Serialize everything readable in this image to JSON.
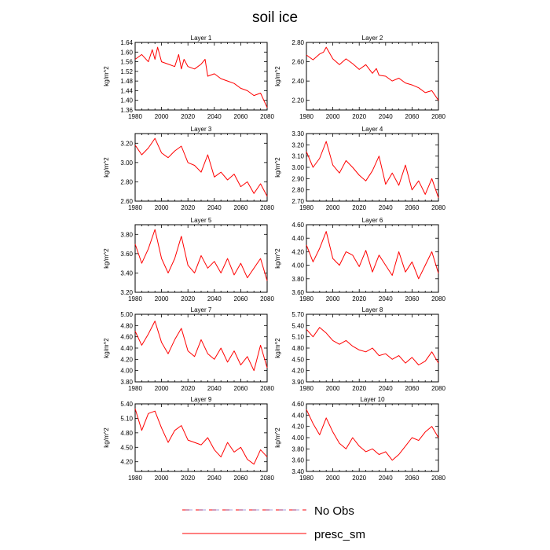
{
  "chart_data": {
    "type": "line",
    "title": "soil ice",
    "legend": {
      "position": "bottom-center",
      "entries": [
        {
          "name": "No Obs",
          "style": "dashed",
          "color": "#6b5cc4",
          "alt_color": "#ff0000"
        },
        {
          "name": "presc_sm",
          "style": "solid",
          "color": "#ff0000"
        }
      ]
    },
    "xlim": [
      1980,
      2080
    ],
    "x_ticks": [
      1980,
      2000,
      2020,
      2040,
      2060,
      2080
    ],
    "x_tick_labels": [
      "1980",
      "2000",
      "2020",
      "2040",
      "2060",
      "2080"
    ],
    "ylabel": "kg/m^2",
    "series_color": "#ff0000",
    "panels": [
      {
        "title": "Layer 1",
        "ylim": [
          1.36,
          1.64
        ],
        "y_ticks": [
          1.36,
          1.4,
          1.44,
          1.48,
          1.52,
          1.56,
          1.6,
          1.64
        ],
        "y_tick_labels": [
          "1.36",
          "1.40",
          "1.44",
          "1.48",
          "1.52",
          "1.56",
          "1.60",
          "1.64"
        ],
        "x": [
          1980,
          1985,
          1990,
          1993,
          1995,
          1997,
          2000,
          2005,
          2010,
          2013,
          2015,
          2017,
          2020,
          2025,
          2030,
          2033,
          2035,
          2040,
          2045,
          2050,
          2055,
          2060,
          2065,
          2070,
          2075,
          2080
        ],
        "values": [
          1.57,
          1.59,
          1.56,
          1.61,
          1.57,
          1.62,
          1.56,
          1.55,
          1.54,
          1.59,
          1.53,
          1.57,
          1.54,
          1.53,
          1.55,
          1.57,
          1.5,
          1.51,
          1.49,
          1.48,
          1.47,
          1.45,
          1.44,
          1.42,
          1.43,
          1.37
        ]
      },
      {
        "title": "Layer 2",
        "ylim": [
          2.1,
          2.8
        ],
        "y_ticks": [
          2.2,
          2.4,
          2.6,
          2.8
        ],
        "y_tick_labels": [
          "2.20",
          "2.40",
          "2.60",
          "2.80"
        ],
        "x": [
          1980,
          1985,
          1990,
          1993,
          1995,
          2000,
          2005,
          2010,
          2015,
          2020,
          2025,
          2030,
          2033,
          2035,
          2040,
          2045,
          2050,
          2055,
          2060,
          2065,
          2070,
          2075,
          2080
        ],
        "values": [
          2.67,
          2.62,
          2.68,
          2.7,
          2.75,
          2.63,
          2.57,
          2.63,
          2.58,
          2.52,
          2.57,
          2.48,
          2.53,
          2.46,
          2.45,
          2.4,
          2.43,
          2.38,
          2.36,
          2.33,
          2.28,
          2.3,
          2.2
        ]
      },
      {
        "title": "Layer 3",
        "ylim": [
          2.6,
          3.3
        ],
        "y_ticks": [
          2.6,
          2.8,
          3.0,
          3.2
        ],
        "y_tick_labels": [
          "2.60",
          "2.80",
          "3.00",
          "3.20"
        ],
        "x": [
          1980,
          1985,
          1990,
          1995,
          2000,
          2005,
          2010,
          2015,
          2020,
          2025,
          2030,
          2035,
          2040,
          2045,
          2050,
          2055,
          2060,
          2065,
          2070,
          2075,
          2080
        ],
        "values": [
          3.18,
          3.08,
          3.15,
          3.25,
          3.1,
          3.05,
          3.12,
          3.17,
          3.0,
          2.97,
          2.9,
          3.08,
          2.85,
          2.9,
          2.82,
          2.88,
          2.75,
          2.8,
          2.68,
          2.78,
          2.65
        ]
      },
      {
        "title": "Layer 4",
        "ylim": [
          2.7,
          3.3
        ],
        "y_ticks": [
          2.7,
          2.8,
          2.9,
          3.0,
          3.1,
          3.2,
          3.3
        ],
        "y_tick_labels": [
          "2.70",
          "2.80",
          "2.90",
          "3.00",
          "3.10",
          "3.20",
          "3.30"
        ],
        "x": [
          1980,
          1985,
          1990,
          1995,
          2000,
          2005,
          2010,
          2015,
          2020,
          2025,
          2030,
          2035,
          2040,
          2045,
          2050,
          2055,
          2060,
          2065,
          2070,
          2075,
          2080
        ],
        "values": [
          3.14,
          3.0,
          3.08,
          3.23,
          3.02,
          2.95,
          3.06,
          3.0,
          2.93,
          2.88,
          2.97,
          3.1,
          2.85,
          2.95,
          2.84,
          3.02,
          2.8,
          2.88,
          2.76,
          2.9,
          2.73
        ]
      },
      {
        "title": "Layer 5",
        "ylim": [
          3.2,
          3.9
        ],
        "y_ticks": [
          3.2,
          3.4,
          3.6,
          3.8
        ],
        "y_tick_labels": [
          "3.20",
          "3.40",
          "3.60",
          "3.80"
        ],
        "x": [
          1980,
          1985,
          1990,
          1995,
          2000,
          2005,
          2010,
          2015,
          2020,
          2025,
          2030,
          2035,
          2040,
          2045,
          2050,
          2055,
          2060,
          2065,
          2070,
          2075,
          2080
        ],
        "values": [
          3.7,
          3.5,
          3.65,
          3.85,
          3.55,
          3.4,
          3.55,
          3.78,
          3.48,
          3.4,
          3.58,
          3.45,
          3.52,
          3.4,
          3.55,
          3.38,
          3.5,
          3.35,
          3.45,
          3.55,
          3.32
        ]
      },
      {
        "title": "Layer 6",
        "ylim": [
          3.6,
          4.6
        ],
        "y_ticks": [
          3.6,
          3.8,
          4.0,
          4.2,
          4.4,
          4.6
        ],
        "y_tick_labels": [
          "3.60",
          "3.80",
          "4.00",
          "4.20",
          "4.40",
          "4.60"
        ],
        "x": [
          1980,
          1985,
          1990,
          1995,
          2000,
          2005,
          2010,
          2015,
          2020,
          2025,
          2030,
          2035,
          2040,
          2045,
          2050,
          2055,
          2060,
          2065,
          2070,
          2075,
          2080
        ],
        "values": [
          4.3,
          4.05,
          4.25,
          4.5,
          4.1,
          4.0,
          4.2,
          4.15,
          3.98,
          4.22,
          3.9,
          4.15,
          4.0,
          3.85,
          4.2,
          3.9,
          4.05,
          3.8,
          4.0,
          4.2,
          3.88
        ]
      },
      {
        "title": "Layer 7",
        "ylim": [
          3.8,
          5.0
        ],
        "y_ticks": [
          3.8,
          4.0,
          4.2,
          4.4,
          4.6,
          4.8,
          5.0
        ],
        "y_tick_labels": [
          "3.80",
          "4.00",
          "4.20",
          "4.40",
          "4.60",
          "4.80",
          "5.00"
        ],
        "x": [
          1980,
          1985,
          1990,
          1995,
          2000,
          2005,
          2010,
          2015,
          2020,
          2025,
          2030,
          2035,
          2040,
          2045,
          2050,
          2055,
          2060,
          2065,
          2070,
          2075,
          2080
        ],
        "values": [
          4.7,
          4.45,
          4.65,
          4.88,
          4.5,
          4.3,
          4.55,
          4.75,
          4.35,
          4.25,
          4.55,
          4.3,
          4.2,
          4.4,
          4.15,
          4.35,
          4.1,
          4.25,
          4.0,
          4.45,
          4.05
        ]
      },
      {
        "title": "Layer 8",
        "ylim": [
          3.9,
          5.7
        ],
        "y_ticks": [
          3.9,
          4.2,
          4.5,
          4.8,
          5.1,
          5.4,
          5.7
        ],
        "y_tick_labels": [
          "3.90",
          "4.20",
          "4.50",
          "4.80",
          "5.10",
          "5.40",
          "5.70"
        ],
        "x": [
          1980,
          1985,
          1990,
          1995,
          2000,
          2005,
          2010,
          2015,
          2020,
          2025,
          2030,
          2035,
          2040,
          2045,
          2050,
          2055,
          2060,
          2065,
          2070,
          2075,
          2080
        ],
        "values": [
          5.3,
          5.1,
          5.35,
          5.2,
          5.0,
          4.9,
          5.0,
          4.85,
          4.75,
          4.7,
          4.8,
          4.6,
          4.65,
          4.5,
          4.6,
          4.4,
          4.55,
          4.35,
          4.45,
          4.7,
          4.4
        ]
      },
      {
        "title": "Layer 9",
        "ylim": [
          4.0,
          5.4
        ],
        "y_ticks": [
          4.2,
          4.5,
          4.8,
          5.1,
          5.4
        ],
        "y_tick_labels": [
          "4.20",
          "4.50",
          "4.80",
          "5.10",
          "5.40"
        ],
        "x": [
          1980,
          1985,
          1990,
          1995,
          2000,
          2005,
          2010,
          2015,
          2020,
          2025,
          2030,
          2035,
          2040,
          2045,
          2050,
          2055,
          2060,
          2065,
          2070,
          2075,
          2080
        ],
        "values": [
          5.3,
          4.85,
          5.2,
          5.25,
          4.9,
          4.6,
          4.85,
          4.95,
          4.65,
          4.6,
          4.55,
          4.7,
          4.45,
          4.3,
          4.6,
          4.4,
          4.5,
          4.25,
          4.15,
          4.45,
          4.3
        ]
      },
      {
        "title": "Layer 10",
        "ylim": [
          3.4,
          4.6
        ],
        "y_ticks": [
          3.4,
          3.6,
          3.8,
          4.0,
          4.2,
          4.4,
          4.6
        ],
        "y_tick_labels": [
          "3.40",
          "3.60",
          "3.80",
          "4.00",
          "4.20",
          "4.40",
          "4.60"
        ],
        "x": [
          1980,
          1985,
          1990,
          1995,
          2000,
          2005,
          2010,
          2015,
          2020,
          2025,
          2030,
          2035,
          2040,
          2045,
          2050,
          2055,
          2060,
          2065,
          2070,
          2075,
          2080
        ],
        "values": [
          4.5,
          4.25,
          4.05,
          4.35,
          4.1,
          3.9,
          3.8,
          4.0,
          3.85,
          3.75,
          3.8,
          3.7,
          3.75,
          3.6,
          3.7,
          3.85,
          4.0,
          3.95,
          4.1,
          4.2,
          4.0
        ]
      }
    ]
  }
}
